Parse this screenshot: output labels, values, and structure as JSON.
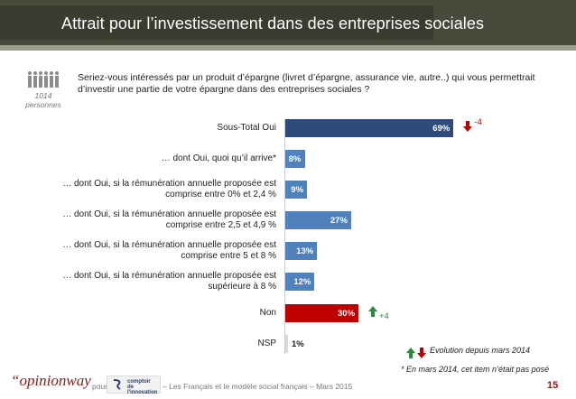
{
  "header": {
    "title": "Attrait pour l’investissement dans des entreprises sociales"
  },
  "sample": {
    "count": "1014",
    "unit": "personnes"
  },
  "question": "Seriez-vous intéressés par un produit d’épargne (livret d’épargne, assurance vie, autre..) qui vous permettrait d’investir une partie de votre épargne dans des entreprises sociales ?",
  "chart_data": {
    "type": "bar",
    "orientation": "horizontal",
    "categories": [
      "Sous-Total Oui",
      "… dont Oui, quoi qu’il arrive*",
      "… dont Oui, si la rémunération annuelle proposée est comprise entre 0% et 2,4 %",
      "… dont Oui, si la rémunération annuelle proposée est comprise entre 2,5 et 4,9 %",
      "… dont Oui, si la rémunération annuelle proposée est comprise entre 5 et 8 %",
      "… dont Oui, si la rémunération annuelle proposée est supérieure à 8 %",
      "Non",
      "NSP"
    ],
    "values": [
      69,
      8,
      9,
      27,
      13,
      12,
      30,
      1
    ],
    "value_labels": [
      "69%",
      "8%",
      "9%",
      "27%",
      "13%",
      "12%",
      "30%",
      "1%"
    ],
    "bar_colors": [
      "#2f4a7c",
      "#4f81bd",
      "#4f81bd",
      "#4f81bd",
      "#4f81bd",
      "#4f81bd",
      "#c00000",
      "#d9d9d9"
    ],
    "evolutions": [
      {
        "index": 0,
        "direction": "down",
        "text": "-4"
      },
      {
        "index": 6,
        "direction": "up",
        "text": "+4"
      }
    ],
    "xlim": [
      0,
      100
    ]
  },
  "legend": {
    "text": "Evolution depuis mars 2014"
  },
  "footnote": "* En mars 2014, cet item n’était pas posé",
  "footer": {
    "brand": "“opinionway",
    "pour": "pour",
    "logo_line1": "comptoir",
    "logo_line2": "de l'innovation",
    "text": "– Les Français et le modèle social français – Mars 2015",
    "page": "15"
  },
  "colors": {
    "title_bar": "#3b3b2f",
    "accent_red": "#c00000",
    "accent_green": "#2e8b3e",
    "brand": "#8b1a1a"
  }
}
